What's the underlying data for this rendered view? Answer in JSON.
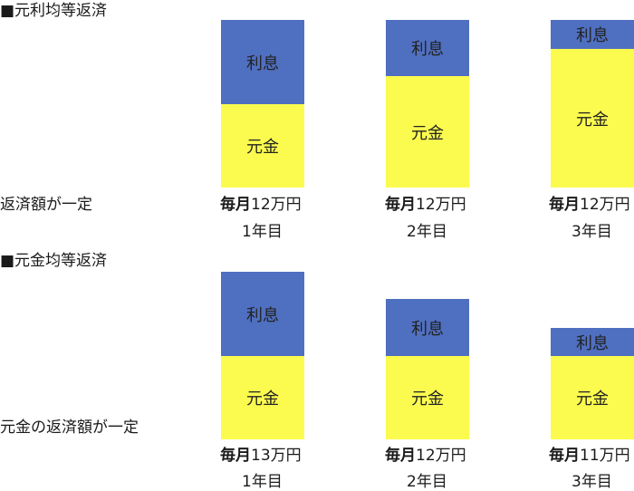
{
  "section1": {
    "heading": "■元利均等返済",
    "note": "返済額が一定",
    "columns": [
      {
        "interest_label": "利息",
        "principal_label": "元金",
        "pay_prefix": "毎月",
        "pay_amount": "12万円",
        "year": "1年目",
        "interest_share": 0.43
      },
      {
        "interest_label": "利息",
        "principal_label": "元金",
        "pay_prefix": "毎月",
        "pay_amount": "12万円",
        "year": "2年目",
        "interest_share": 0.33
      },
      {
        "interest_label": "利息",
        "principal_label": "元金",
        "pay_prefix": "毎月",
        "pay_amount": "12万円",
        "year": "3年目",
        "interest_share": 0.16
      }
    ]
  },
  "section2": {
    "heading": "■元金均等返済",
    "note": "元金の返済額が一定",
    "columns": [
      {
        "interest_label": "利息",
        "principal_label": "元金",
        "pay_prefix": "毎月",
        "pay_amount": "13万円",
        "year": "1年目"
      },
      {
        "interest_label": "利息",
        "principal_label": "元金",
        "pay_prefix": "毎月",
        "pay_amount": "12万円",
        "year": "2年目"
      },
      {
        "interest_label": "利息",
        "principal_label": "元金",
        "pay_prefix": "毎月",
        "pay_amount": "11万円",
        "year": "3年目"
      }
    ]
  },
  "colors": {
    "interest": "#4f6fc0",
    "principal": "#fbfb4f"
  }
}
